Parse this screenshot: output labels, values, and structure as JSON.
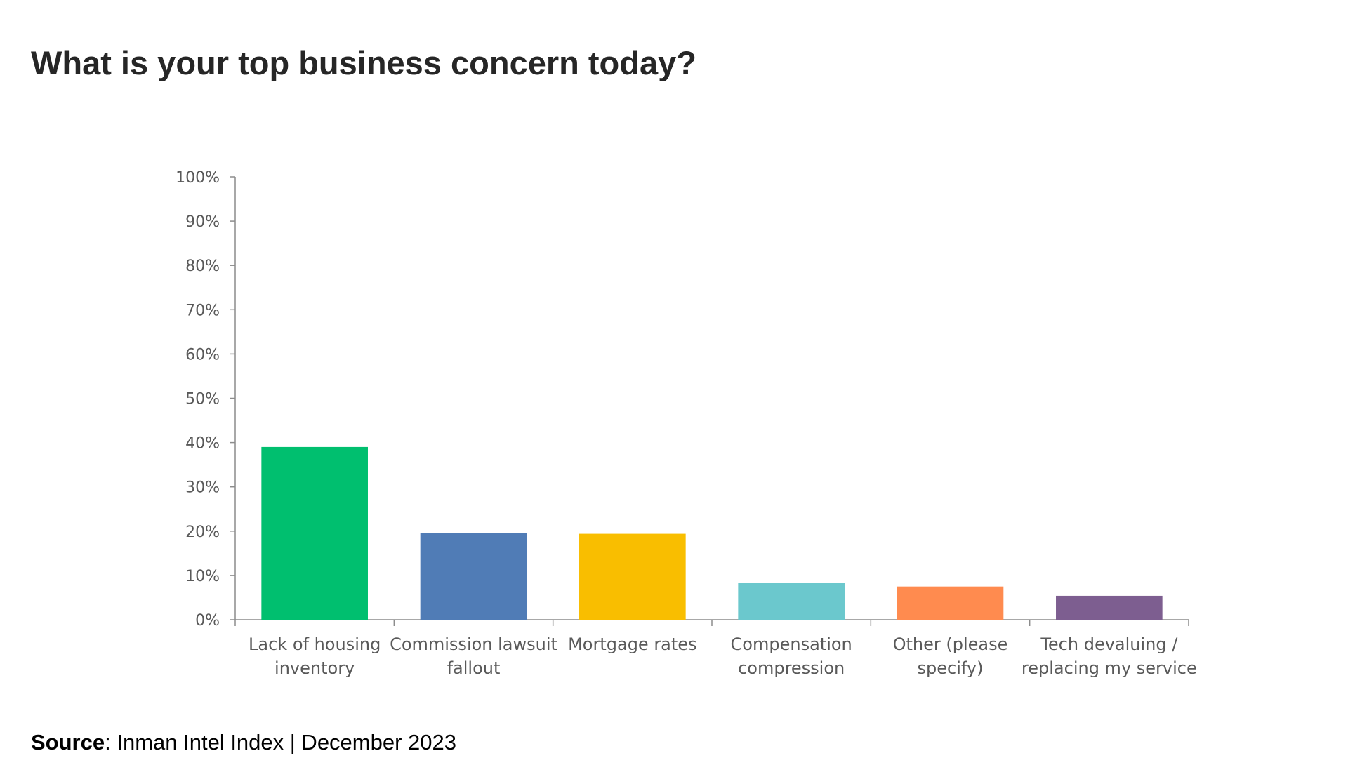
{
  "title": "What is your top business concern today?",
  "source": {
    "label": "Source",
    "text": ": Inman Intel Index | December 2023"
  },
  "chart_data": {
    "type": "bar",
    "categories": [
      [
        "Lack of housing",
        "inventory"
      ],
      [
        "Commission lawsuit",
        "fallout"
      ],
      [
        "Mortgage rates"
      ],
      [
        "Compensation",
        "compression"
      ],
      [
        "Other (please",
        "specify)"
      ],
      [
        "Tech devaluing /",
        "replacing my service"
      ]
    ],
    "values": [
      39,
      19.5,
      19.4,
      8.4,
      7.5,
      5.4
    ],
    "colors": [
      "#00BF6F",
      "#507CB6",
      "#F9BE00",
      "#6BC8CD",
      "#FF8B4F",
      "#7D5E90"
    ],
    "yticks": [
      "0%",
      "10%",
      "20%",
      "30%",
      "40%",
      "50%",
      "60%",
      "70%",
      "80%",
      "90%",
      "100%"
    ],
    "ylim": [
      0,
      100
    ],
    "unit": "%",
    "grid": false,
    "legend": "none"
  }
}
